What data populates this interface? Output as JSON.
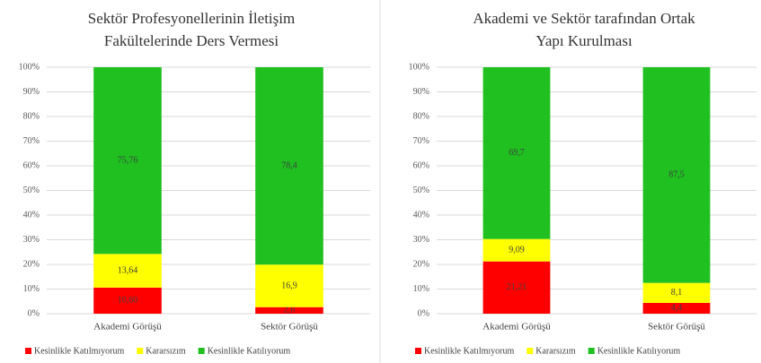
{
  "chart_data": [
    {
      "type": "bar",
      "stacked": "percent",
      "title": [
        "Sektör Profesyonellerinin  İletişim",
        "Fakültelerinde  Ders Vermesi"
      ],
      "categories": [
        "Akademi Görüşü",
        "Sektör Görüşü"
      ],
      "series": [
        {
          "name": "Kesinlikle Katılmıyorum",
          "color": "#ff0000",
          "values": [
            10.6,
            2.6
          ],
          "value_labels": [
            "10,60",
            "2,6"
          ]
        },
        {
          "name": "Kararsızım",
          "color": "#ffff00",
          "values": [
            13.64,
            16.9
          ],
          "value_labels": [
            "13,64",
            "16,9"
          ]
        },
        {
          "name": "Kesinlikle Katılıyorum",
          "color": "#1fc01f",
          "values": [
            75.76,
            78.4
          ],
          "value_labels": [
            "75,76",
            "78,4"
          ]
        }
      ],
      "ylim": [
        0,
        100
      ],
      "yticks": [
        {
          "value": 0,
          "label": "0%"
        },
        {
          "value": 10,
          "label": "10%"
        },
        {
          "value": 20,
          "label": "20%"
        },
        {
          "value": 30,
          "label": "30%"
        },
        {
          "value": 40,
          "label": "40%"
        },
        {
          "value": 50,
          "label": "50%"
        },
        {
          "value": 60,
          "label": "60%"
        },
        {
          "value": 70,
          "label": "70%"
        },
        {
          "value": 80,
          "label": "80%"
        },
        {
          "value": 90,
          "label": "90%"
        },
        {
          "value": 100,
          "label": "100%"
        }
      ],
      "grid": true,
      "legend": "bottom"
    },
    {
      "type": "bar",
      "stacked": "percent",
      "title": [
        "Akademi ve Sektör tarafından Ortak",
        "Yapı Kurulması"
      ],
      "categories": [
        "Akademi Görüşü",
        "Sektör Görüşü"
      ],
      "series": [
        {
          "name": "Kesinlikle Katılmıyorum",
          "color": "#ff0000",
          "values": [
            21.21,
            4.4
          ],
          "value_labels": [
            "21,21",
            "4,4"
          ]
        },
        {
          "name": "Kararsızım",
          "color": "#ffff00",
          "values": [
            9.09,
            8.1
          ],
          "value_labels": [
            "9,09",
            "8,1"
          ]
        },
        {
          "name": "Kesinlikle Katılıyorum",
          "color": "#1fc01f",
          "values": [
            69.7,
            87.5
          ],
          "value_labels": [
            "69,7",
            "87,5"
          ]
        }
      ],
      "ylim": [
        0,
        100
      ],
      "yticks": [
        {
          "value": 0,
          "label": "0%"
        },
        {
          "value": 10,
          "label": "10%"
        },
        {
          "value": 20,
          "label": "20%"
        },
        {
          "value": 30,
          "label": "30%"
        },
        {
          "value": 40,
          "label": "40%"
        },
        {
          "value": 50,
          "label": "50%"
        },
        {
          "value": 60,
          "label": "60%"
        },
        {
          "value": 70,
          "label": "70%"
        },
        {
          "value": 80,
          "label": "80%"
        },
        {
          "value": 90,
          "label": "90%"
        },
        {
          "value": 100,
          "label": "100%"
        }
      ],
      "grid": true,
      "legend": "bottom"
    }
  ]
}
